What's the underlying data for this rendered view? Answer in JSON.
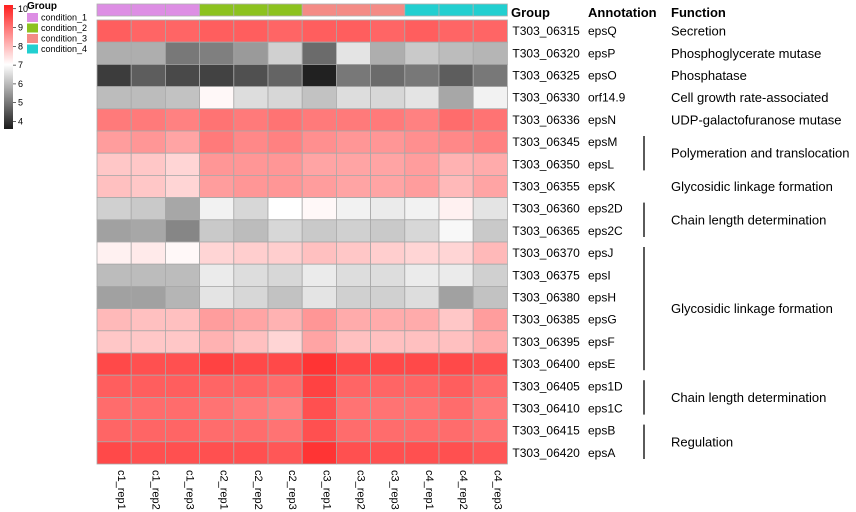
{
  "chart_data": {
    "type": "heatmap",
    "title": "",
    "columns": [
      "c1_rep1",
      "c1_rep2",
      "c1_rep3",
      "c2_rep1",
      "c2_rep2",
      "c2_rep3",
      "c3_rep1",
      "c3_rep2",
      "c3_rep3",
      "c4_rep1",
      "c4_rep2",
      "c4_rep3"
    ],
    "column_groups": [
      "condition_1",
      "condition_1",
      "condition_1",
      "condition_2",
      "condition_2",
      "condition_2",
      "condition_3",
      "condition_3",
      "condition_3",
      "condition_4",
      "condition_4",
      "condition_4"
    ],
    "rows": [
      {
        "gene": "T303_06315",
        "annotation": "epsQ",
        "values": [
          9.3,
          9.2,
          9.2,
          9.3,
          9.3,
          9.2,
          9.3,
          9.3,
          9.2,
          9.3,
          9.2,
          9.2
        ]
      },
      {
        "gene": "T303_06320",
        "annotation": "epsP",
        "values": [
          5.8,
          5.8,
          5.0,
          5.1,
          5.5,
          6.3,
          4.8,
          6.6,
          5.8,
          6.2,
          6.0,
          5.9
        ]
      },
      {
        "gene": "T303_06325",
        "annotation": "epsO",
        "values": [
          4.1,
          4.6,
          4.3,
          4.2,
          4.4,
          4.7,
          3.7,
          5.0,
          4.8,
          5.0,
          4.6,
          5.0
        ]
      },
      {
        "gene": "T303_06330",
        "annotation": "orf14.9",
        "values": [
          6.0,
          6.0,
          6.1,
          7.1,
          6.5,
          6.4,
          6.1,
          6.5,
          6.4,
          6.6,
          5.7,
          6.8
        ]
      },
      {
        "gene": "T303_06336",
        "annotation": "epsN",
        "values": [
          8.9,
          8.9,
          8.8,
          9.0,
          8.9,
          9.0,
          8.9,
          8.9,
          8.9,
          8.8,
          9.1,
          9.0
        ]
      },
      {
        "gene": "T303_06345",
        "annotation": "epsM",
        "values": [
          8.4,
          8.5,
          8.3,
          8.9,
          8.7,
          8.8,
          8.6,
          8.5,
          8.5,
          8.6,
          8.7,
          8.8
        ]
      },
      {
        "gene": "T303_06350",
        "annotation": "epsL",
        "values": [
          7.8,
          7.8,
          7.6,
          8.5,
          8.5,
          8.5,
          8.3,
          8.3,
          8.3,
          8.4,
          8.1,
          8.2
        ]
      },
      {
        "gene": "T303_06355",
        "annotation": "epsK",
        "values": [
          7.9,
          7.8,
          7.6,
          8.4,
          8.5,
          8.5,
          8.4,
          8.3,
          8.3,
          8.4,
          8.0,
          8.3
        ]
      },
      {
        "gene": "T303_06360",
        "annotation": "eps2D",
        "values": [
          6.3,
          6.2,
          5.7,
          6.8,
          6.4,
          7.0,
          7.1,
          6.8,
          6.7,
          6.8,
          7.2,
          6.6
        ]
      },
      {
        "gene": "T303_06365",
        "annotation": "eps2C",
        "values": [
          5.6,
          5.7,
          5.2,
          6.2,
          6.0,
          6.4,
          6.2,
          6.3,
          6.2,
          6.4,
          6.9,
          6.2
        ]
      },
      {
        "gene": "T303_06370",
        "annotation": "epsJ",
        "values": [
          7.2,
          7.3,
          7.1,
          7.6,
          7.7,
          7.7,
          7.9,
          7.8,
          7.7,
          7.6,
          7.6,
          8.0
        ]
      },
      {
        "gene": "T303_06375",
        "annotation": "epsI",
        "values": [
          6.0,
          6.0,
          6.0,
          6.7,
          6.5,
          6.4,
          6.7,
          6.5,
          6.5,
          6.7,
          6.7,
          6.3
        ]
      },
      {
        "gene": "T303_06380",
        "annotation": "epsH",
        "values": [
          5.6,
          5.6,
          5.9,
          6.6,
          6.4,
          6.1,
          6.6,
          6.3,
          6.3,
          6.5,
          5.6,
          6.1
        ]
      },
      {
        "gene": "T303_06385",
        "annotation": "epsG",
        "values": [
          8.0,
          7.9,
          7.9,
          8.4,
          8.3,
          8.1,
          8.5,
          8.2,
          8.2,
          8.2,
          7.8,
          8.4
        ]
      },
      {
        "gene": "T303_06395",
        "annotation": "epsF",
        "values": [
          7.8,
          7.8,
          7.8,
          8.1,
          7.9,
          7.6,
          8.3,
          7.9,
          7.9,
          7.9,
          7.9,
          8.2
        ]
      },
      {
        "gene": "T303_06400",
        "annotation": "epsE",
        "values": [
          9.6,
          9.5,
          9.5,
          9.7,
          9.6,
          9.6,
          9.9,
          9.6,
          9.6,
          9.6,
          9.6,
          9.5
        ]
      },
      {
        "gene": "T303_06405",
        "annotation": "eps1D",
        "values": [
          9.3,
          9.3,
          9.3,
          9.2,
          9.2,
          9.1,
          9.7,
          9.2,
          9.2,
          9.2,
          9.3,
          9.1
        ]
      },
      {
        "gene": "T303_06410",
        "annotation": "eps1C",
        "values": [
          9.1,
          9.1,
          9.1,
          9.0,
          8.9,
          8.8,
          9.5,
          9.0,
          9.0,
          9.0,
          9.1,
          8.9
        ]
      },
      {
        "gene": "T303_06415",
        "annotation": "epsB",
        "values": [
          9.2,
          9.2,
          9.2,
          9.1,
          9.1,
          9.0,
          9.5,
          9.1,
          9.1,
          9.1,
          9.1,
          9.0
        ]
      },
      {
        "gene": "T303_06420",
        "annotation": "epsA",
        "values": [
          9.6,
          9.5,
          9.5,
          9.5,
          9.5,
          9.4,
          9.9,
          9.5,
          9.5,
          9.5,
          9.5,
          9.4
        ]
      }
    ],
    "functions": [
      {
        "label": "Secretion",
        "rows": [
          0
        ],
        "bracket": false
      },
      {
        "label": "Phosphoglycerate mutase",
        "rows": [
          1
        ],
        "bracket": false
      },
      {
        "label": "Phosphatase",
        "rows": [
          2
        ],
        "bracket": false
      },
      {
        "label": "Cell growth rate-associated",
        "rows": [
          3
        ],
        "bracket": false
      },
      {
        "label": "UDP-galactofuranose mutase",
        "rows": [
          4
        ],
        "bracket": false
      },
      {
        "label": "Polymeration and translocation",
        "rows": [
          5,
          6
        ],
        "bracket": true
      },
      {
        "label": "Glycosidic linkage formation",
        "rows": [
          7
        ],
        "bracket": false
      },
      {
        "label": "Chain length determination",
        "rows": [
          8,
          9
        ],
        "bracket": true
      },
      {
        "label": "Glycosidic linkage formation",
        "rows": [
          10,
          11,
          12,
          13,
          14,
          15
        ],
        "bracket": true
      },
      {
        "label": "Chain length determination",
        "rows": [
          16,
          17
        ],
        "bracket": true
      },
      {
        "label": "Regulation",
        "rows": [
          18,
          19
        ],
        "bracket": true
      }
    ],
    "headers": {
      "group": "Group",
      "annotation": "Annotation",
      "function": "Function"
    },
    "legend": {
      "title": "Group",
      "items": [
        {
          "name": "condition_1",
          "color": "#dd8ee4"
        },
        {
          "name": "condition_2",
          "color": "#8cc21f"
        },
        {
          "name": "condition_3",
          "color": "#f48b86"
        },
        {
          "name": "condition_4",
          "color": "#22cfd0"
        }
      ]
    },
    "colorbar": {
      "range": [
        3.6,
        10.2
      ],
      "ticks": [
        10,
        9,
        8,
        7,
        6,
        5,
        4
      ]
    },
    "color_scale": {
      "low": "#1a1a1a",
      "mid": "#ffffff",
      "high": "#ff1f1f",
      "mid_value": 7.0
    }
  }
}
